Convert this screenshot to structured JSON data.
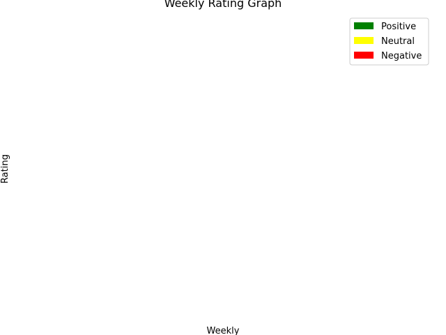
{
  "chart_data": {
    "type": "bar",
    "title": "Weekly Rating Graph",
    "xlabel": "Weekly",
    "ylabel": "Rating",
    "categories": [],
    "series": [
      {
        "name": "Positive",
        "color": "#008000",
        "values": []
      },
      {
        "name": "Neutral",
        "color": "#ffff00",
        "values": []
      },
      {
        "name": "Negative",
        "color": "#ff0000",
        "values": []
      }
    ],
    "grid": false,
    "axes_visible": false,
    "legend_position": "top-right"
  }
}
